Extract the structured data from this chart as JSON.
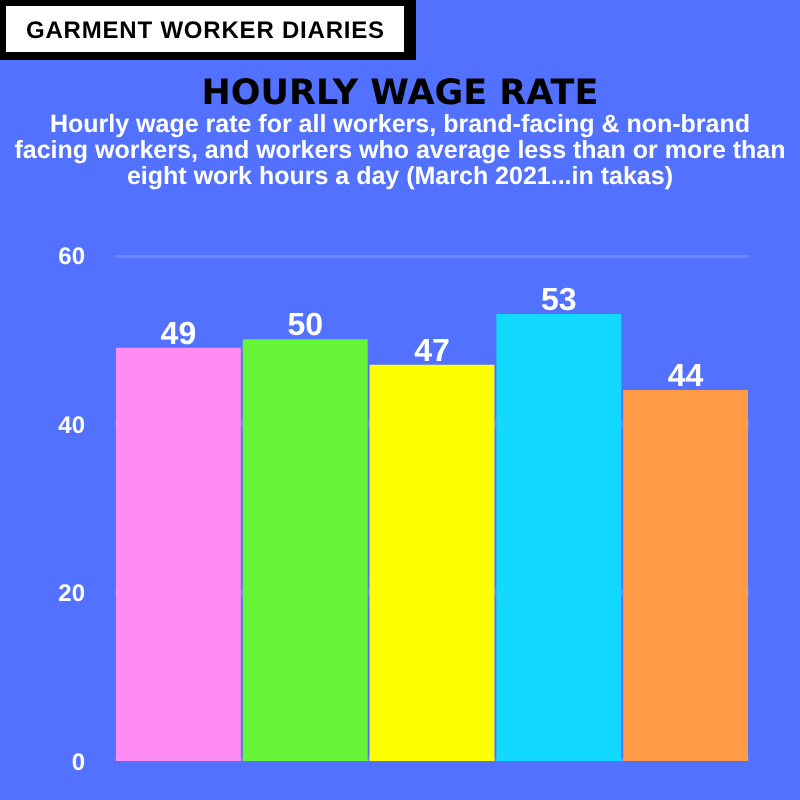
{
  "chart_data": {
    "type": "bar",
    "title": "HOURLY WAGE RATE",
    "subtitle": "Hourly wage rate for all workers, brand-facing & non-brand facing workers, and workers who average less than or more than eight work hours a day (March 2021...in takas)",
    "annotations": [
      "GARMENT WORKER DIARIES"
    ],
    "categories": [
      null,
      null,
      null,
      null,
      null
    ],
    "values": [
      49,
      50,
      47,
      53,
      44
    ],
    "colors": [
      "#ff8cf3",
      "#66f536",
      "#ffff00",
      "#12d9ff",
      "#ff9b45"
    ],
    "ylim": [
      0,
      60
    ],
    "yticks": [
      0,
      20,
      40,
      60
    ],
    "grid": "y",
    "data_labels": true,
    "tick_labels": "y"
  }
}
